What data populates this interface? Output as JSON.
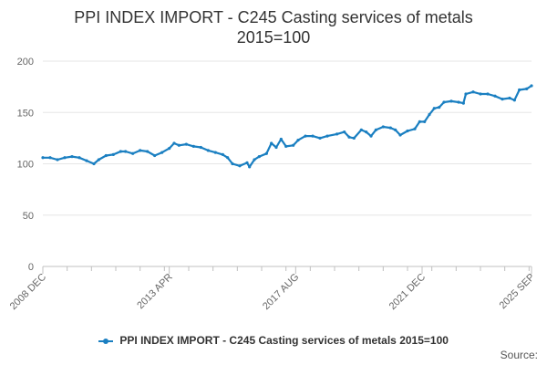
{
  "chart_data": {
    "type": "line",
    "title_lines": [
      "PPI INDEX IMPORT - C245 Casting services of metals",
      "2015=100"
    ],
    "xlabel": "",
    "ylabel": "",
    "ylim": [
      0,
      200
    ],
    "y_ticks": [
      0,
      50,
      100,
      150,
      200
    ],
    "x_range": [
      "2008-12",
      "2025-09"
    ],
    "x_ticks": [
      "2008 DEC",
      "2013 APR",
      "2017 AUG",
      "2021 DEC",
      "2025 SEP"
    ],
    "grid": "horizontal",
    "legend_position": "bottom-center",
    "color": "#1a7fc1",
    "series": [
      {
        "name": "PPI INDEX IMPORT - C245 Casting services of metals 2015=100",
        "points": [
          [
            "2008-12",
            106
          ],
          [
            "2009-03",
            106
          ],
          [
            "2009-06",
            104
          ],
          [
            "2009-09",
            106
          ],
          [
            "2009-12",
            107
          ],
          [
            "2010-03",
            106
          ],
          [
            "2010-06",
            103
          ],
          [
            "2010-09",
            100
          ],
          [
            "2010-11",
            104
          ],
          [
            "2011-02",
            108
          ],
          [
            "2011-05",
            109
          ],
          [
            "2011-08",
            112
          ],
          [
            "2011-10",
            112
          ],
          [
            "2012-01",
            110
          ],
          [
            "2012-04",
            113
          ],
          [
            "2012-07",
            112
          ],
          [
            "2012-10",
            108
          ],
          [
            "2013-01",
            111
          ],
          [
            "2013-04",
            115
          ],
          [
            "2013-06",
            120
          ],
          [
            "2013-08",
            118
          ],
          [
            "2013-11",
            119
          ],
          [
            "2014-02",
            117
          ],
          [
            "2014-05",
            116
          ],
          [
            "2014-08",
            113
          ],
          [
            "2014-11",
            111
          ],
          [
            "2015-02",
            109
          ],
          [
            "2015-04",
            106
          ],
          [
            "2015-06",
            100
          ],
          [
            "2015-09",
            98
          ],
          [
            "2015-12",
            101
          ],
          [
            "2016-01",
            97
          ],
          [
            "2016-03",
            104
          ],
          [
            "2016-05",
            107
          ],
          [
            "2016-08",
            110
          ],
          [
            "2016-10",
            120
          ],
          [
            "2016-12",
            116
          ],
          [
            "2017-02",
            124
          ],
          [
            "2017-04",
            117
          ],
          [
            "2017-07",
            118
          ],
          [
            "2017-09",
            123
          ],
          [
            "2017-12",
            127
          ],
          [
            "2018-03",
            127
          ],
          [
            "2018-06",
            125
          ],
          [
            "2018-09",
            127
          ],
          [
            "2019-01",
            129
          ],
          [
            "2019-04",
            131
          ],
          [
            "2019-06",
            126
          ],
          [
            "2019-08",
            125
          ],
          [
            "2019-11",
            133
          ],
          [
            "2020-01",
            131
          ],
          [
            "2020-03",
            127
          ],
          [
            "2020-05",
            133
          ],
          [
            "2020-08",
            136
          ],
          [
            "2020-11",
            135
          ],
          [
            "2021-01",
            133
          ],
          [
            "2021-03",
            128
          ],
          [
            "2021-06",
            132
          ],
          [
            "2021-09",
            134
          ],
          [
            "2021-11",
            141
          ],
          [
            "2022-01",
            141
          ],
          [
            "2022-03",
            148
          ],
          [
            "2022-05",
            154
          ],
          [
            "2022-07",
            155
          ],
          [
            "2022-09",
            160
          ],
          [
            "2022-12",
            161
          ],
          [
            "2023-03",
            160
          ],
          [
            "2023-05",
            159
          ],
          [
            "2023-06",
            168
          ],
          [
            "2023-09",
            170
          ],
          [
            "2023-12",
            168
          ],
          [
            "2024-03",
            168
          ],
          [
            "2024-06",
            166
          ],
          [
            "2024-09",
            163
          ],
          [
            "2024-12",
            164
          ],
          [
            "2025-02",
            162
          ],
          [
            "2025-04",
            172
          ],
          [
            "2025-07",
            173
          ],
          [
            "2025-09",
            176
          ]
        ]
      }
    ]
  },
  "source_label": "Source:"
}
